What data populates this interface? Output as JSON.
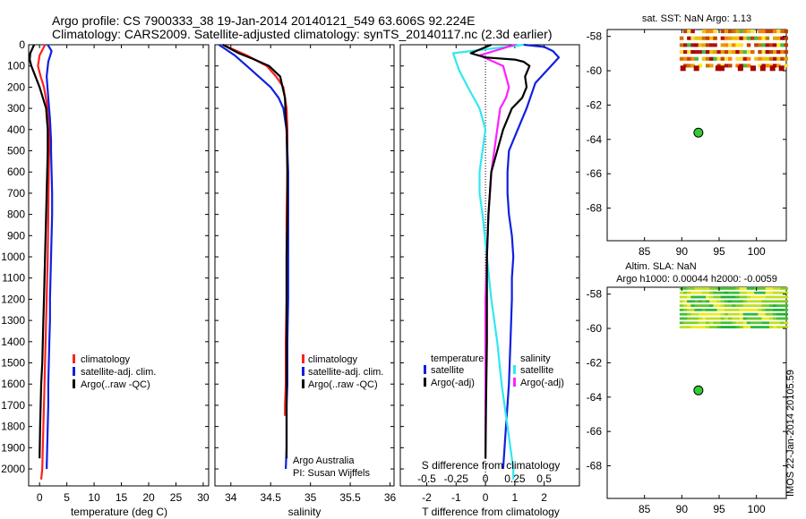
{
  "header": {
    "line1": "Argo profile: CS 7900333_38 19-Jan-2014 20140121_549 63.606S 92.224E",
    "line2": "Climatology: CARS2009. Satellite-adjusted climatology: synTS_20140117.nc (2.3d earlier)"
  },
  "colors": {
    "climatology": "#ff2020",
    "satellite": "#1020e0",
    "argo": "#000000",
    "sal_satellite": "#30e8f0",
    "sal_argo": "#ff20ff"
  },
  "chart_data": [
    {
      "type": "line",
      "id": "temperature",
      "xlabel": "temperature (deg C)",
      "xlim": [
        -2,
        31
      ],
      "ylim": [
        2080,
        0
      ],
      "xticks": [
        0,
        5,
        10,
        15,
        20,
        25,
        30
      ],
      "yticks": [
        0,
        100,
        200,
        300,
        400,
        500,
        600,
        700,
        800,
        900,
        1000,
        1100,
        1200,
        1300,
        1400,
        1500,
        1600,
        1700,
        1800,
        1900,
        2000
      ],
      "legend": [
        "climatology",
        "satellite-adj. clim.",
        "Argo(..raw -QC)"
      ],
      "series": [
        {
          "name": "climatology",
          "x": [
            1.0,
            0.0,
            -0.3,
            0.2,
            0.8,
            1.5,
            1.8,
            1.8,
            1.7,
            1.6,
            1.5,
            1.4,
            1.3,
            1.2,
            1.1,
            1.0,
            0.9,
            0.8,
            0.7,
            0.6,
            0.5,
            0.3
          ],
          "y": [
            0,
            50,
            100,
            150,
            200,
            300,
            370,
            450,
            600,
            800,
            1000,
            1100,
            1200,
            1300,
            1400,
            1500,
            1600,
            1700,
            1800,
            1900,
            2000,
            2050
          ]
        },
        {
          "name": "satellite-adj. clim.",
          "x": [
            1.5,
            2.2,
            1.6,
            1.3,
            1.6,
            1.9,
            2.1,
            2.1,
            2.2,
            2.3,
            2.3,
            2.2,
            2.1,
            2.0,
            1.9,
            1.9,
            1.8,
            1.7,
            1.6,
            1.6,
            1.5,
            1.4,
            1.3
          ],
          "y": [
            0,
            30,
            80,
            150,
            250,
            350,
            450,
            500,
            600,
            700,
            800,
            900,
            1000,
            1100,
            1200,
            1300,
            1400,
            1500,
            1600,
            1700,
            1800,
            1900,
            2000
          ]
        },
        {
          "name": "Argo(..raw -QC)",
          "x": [
            -1.0,
            -1.7,
            -1.8,
            -1.5,
            0.0,
            1.2,
            1.5,
            1.5,
            1.4,
            1.3,
            1.2,
            1.1,
            1.0,
            0.9,
            0.8,
            0.7,
            0.6,
            0.5,
            0.3,
            0.1,
            0.0
          ],
          "y": [
            0,
            40,
            70,
            100,
            200,
            300,
            400,
            500,
            600,
            700,
            800,
            900,
            1000,
            1100,
            1200,
            1300,
            1400,
            1500,
            1600,
            1800,
            1950
          ]
        }
      ]
    },
    {
      "type": "line",
      "id": "salinity",
      "xlabel": "salinity",
      "xlim": [
        33.8,
        36.05
      ],
      "ylim": [
        2080,
        0
      ],
      "xticks": [
        34,
        34.5,
        35,
        35.5,
        36
      ],
      "xticklabels": [
        "34",
        "34.5",
        "35",
        "35.5",
        "36"
      ],
      "legend": [
        "climatology",
        "satellite-adj. clim.",
        "Argo(..raw -QC)"
      ],
      "note": [
        "Argo Australia",
        "PI: Susan Wijffels"
      ],
      "series": [
        {
          "name": "climatology",
          "x": [
            33.9,
            34.2,
            34.45,
            34.57,
            34.66,
            34.7,
            34.71,
            34.71,
            34.7,
            34.7,
            34.7,
            34.69,
            34.69,
            34.69,
            34.68,
            34.68
          ],
          "y": [
            0,
            50,
            100,
            150,
            200,
            300,
            400,
            600,
            800,
            1000,
            1200,
            1400,
            1500,
            1600,
            1700,
            1750
          ]
        },
        {
          "name": "satellite-adj. clim.",
          "x": [
            33.85,
            34.05,
            34.2,
            34.35,
            34.5,
            34.6,
            34.66,
            34.7,
            34.71,
            34.72,
            34.72,
            34.72,
            34.72,
            34.71,
            34.71,
            34.71,
            34.7,
            34.7,
            34.7,
            34.69
          ],
          "y": [
            0,
            50,
            100,
            150,
            200,
            250,
            300,
            400,
            500,
            600,
            800,
            1000,
            1200,
            1400,
            1500,
            1600,
            1700,
            1800,
            1900,
            2000
          ]
        },
        {
          "name": "Argo(..raw -QC)",
          "x": [
            33.9,
            34.1,
            34.3,
            34.48,
            34.62,
            34.68,
            34.69,
            34.7,
            34.71,
            34.71,
            34.7,
            34.7,
            34.7,
            34.7,
            34.7,
            34.7
          ],
          "y": [
            0,
            40,
            70,
            100,
            150,
            250,
            350,
            400,
            600,
            800,
            1000,
            1200,
            1400,
            1600,
            1800,
            1950
          ]
        }
      ]
    },
    {
      "type": "line",
      "id": "difference",
      "xlabel": "T difference from climatology",
      "xlim": [
        -2.9,
        3.2
      ],
      "ylim": [
        2080,
        0
      ],
      "xticks": [
        -2,
        -1,
        0,
        1,
        2
      ],
      "top_label": "S difference from climatology",
      "s_ticklabels": [
        "-0.5",
        "-0.25",
        "0",
        "0.25",
        "0.5"
      ],
      "s_tick_positions": [
        -2,
        -1,
        0,
        1,
        2
      ],
      "legend_temperature_title": "temperature",
      "legend_salinity_title": "salinity",
      "legend_temperature": [
        "satellite",
        "Argo(-adj)"
      ],
      "legend_salinity": [
        "satellite",
        "Argo(-adj)"
      ],
      "series": [
        {
          "name": "T satellite",
          "x": [
            1.3,
            2.0,
            2.3,
            2.5,
            1.7,
            1.4,
            1.1,
            0.8,
            0.75,
            0.75,
            0.8,
            0.9,
            0.95,
            0.9,
            0.9,
            0.85,
            0.8,
            0.7,
            0.6
          ],
          "y": [
            0,
            10,
            30,
            60,
            180,
            300,
            400,
            500,
            600,
            700,
            800,
            900,
            1000,
            1100,
            1200,
            1400,
            1600,
            1800,
            2000
          ]
        },
        {
          "name": "T Argo(-adj)",
          "x": [
            0.2,
            -0.5,
            0.0,
            1.0,
            1.3,
            1.5,
            1.35,
            1.4,
            1.25,
            0.9,
            0.6,
            0.4,
            0.2,
            0.15,
            0.1,
            0.05,
            0.05,
            0.05,
            0.02,
            0.0
          ],
          "y": [
            0,
            40,
            60,
            70,
            80,
            100,
            150,
            200,
            250,
            300,
            400,
            500,
            600,
            700,
            800,
            1000,
            1200,
            1400,
            1700,
            1950
          ]
        },
        {
          "name": "S satellite",
          "x": [
            1.3,
            -1.1,
            -0.9,
            -0.6,
            -0.2,
            0.0,
            -0.1,
            -0.2,
            -0.2,
            -0.1,
            0.05,
            0.2,
            0.4,
            0.55,
            0.75,
            0.95,
            0.95
          ],
          "y": [
            0,
            40,
            120,
            200,
            300,
            400,
            500,
            600,
            700,
            800,
            1000,
            1200,
            1400,
            1600,
            1800,
            2000,
            2050
          ]
        },
        {
          "name": "S Argo(-adj)",
          "x": [
            1.0,
            -0.2,
            0.6,
            0.8,
            0.7,
            0.5,
            0.4,
            0.3,
            0.2,
            0.1,
            0.05,
            0.0,
            0.0,
            0.0,
            0.0
          ],
          "y": [
            0,
            50,
            100,
            200,
            250,
            300,
            400,
            500,
            600,
            800,
            1000,
            1200,
            1400,
            1700,
            1950
          ]
        }
      ]
    },
    {
      "type": "heatmap",
      "id": "sst",
      "title": "sat. SST: NaN Argo: 1.13",
      "xlim": [
        80,
        104
      ],
      "ylim": [
        -69.9,
        -57.6
      ],
      "xticks": [
        85,
        90,
        95,
        100
      ],
      "yticks": [
        -58,
        -60,
        -62,
        -64,
        -66,
        -68
      ],
      "argo_position": {
        "lon": 92.224,
        "lat": -63.606
      }
    },
    {
      "type": "heatmap",
      "id": "sla",
      "title_line1": "Altim. SLA: NaN",
      "title_line2": "Argo h1000: 0.00044 h2000: -0.0059",
      "xlim": [
        80,
        104
      ],
      "ylim": [
        -69.9,
        -57.6
      ],
      "xticks": [
        85,
        90,
        95,
        100
      ],
      "yticks": [
        -58,
        -60,
        -62,
        -64,
        -66,
        -68
      ],
      "argo_position": {
        "lon": 92.224,
        "lat": -63.606
      }
    }
  ],
  "side_stamp": "IMOS 22-Jan-2014 20105.59"
}
